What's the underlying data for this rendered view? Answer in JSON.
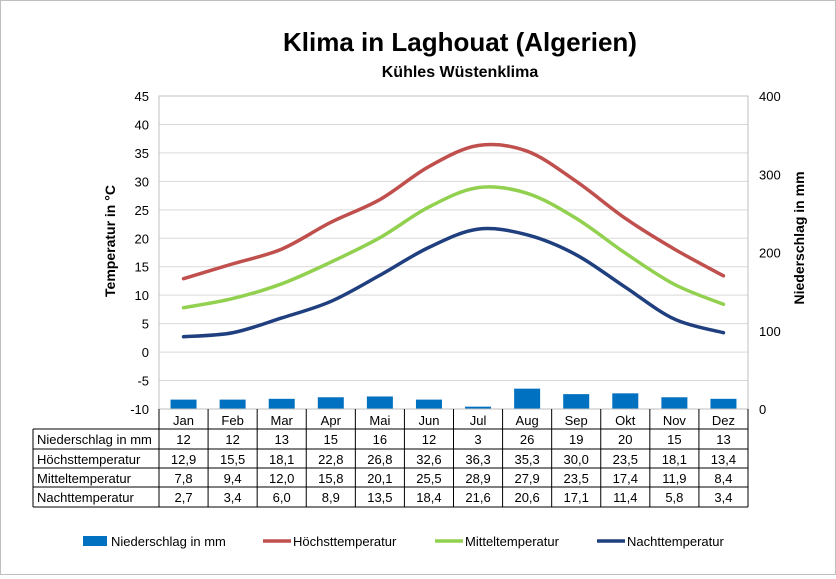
{
  "chart_data": {
    "type": "bar+line",
    "title": "Klima in Laghouat (Algerien)",
    "subtitle": "Kühles Wüstenklima",
    "categories": [
      "Jan",
      "Feb",
      "Mar",
      "Apr",
      "Mai",
      "Jun",
      "Jul",
      "Aug",
      "Sep",
      "Okt",
      "Nov",
      "Dez"
    ],
    "y_left": {
      "label": "Temperatur in °C",
      "min": -10,
      "max": 45,
      "step": 5
    },
    "y_right": {
      "label": "Niederschlag in mm",
      "min": 0,
      "max": 400,
      "step": 100
    },
    "bars": {
      "name": "Niederschlag in mm",
      "color": "#0070c0",
      "values": [
        12,
        12,
        13,
        15,
        16,
        12,
        3,
        26,
        19,
        20,
        15,
        13
      ]
    },
    "lines": [
      {
        "name": "Höchsttemperatur",
        "color": "#c0504d",
        "values": [
          12.9,
          15.5,
          18.1,
          22.8,
          26.8,
          32.6,
          36.3,
          35.3,
          30.0,
          23.5,
          18.1,
          13.4
        ]
      },
      {
        "name": "Mitteltemperatur",
        "color": "#92d050",
        "values": [
          7.8,
          9.4,
          12.0,
          15.8,
          20.1,
          25.5,
          28.9,
          27.9,
          23.5,
          17.4,
          11.9,
          8.4
        ]
      },
      {
        "name": "Nachttemperatur",
        "color": "#1f3f7f",
        "values": [
          2.7,
          3.4,
          6.0,
          8.9,
          13.5,
          18.4,
          21.6,
          20.6,
          17.1,
          11.4,
          5.8,
          3.4
        ]
      }
    ],
    "table_rows": [
      {
        "label": "Niederschlag in mm",
        "cells": [
          "12",
          "12",
          "13",
          "15",
          "16",
          "12",
          "3",
          "26",
          "19",
          "20",
          "15",
          "13"
        ]
      },
      {
        "label": "Höchsttemperatur",
        "cells": [
          "12,9",
          "15,5",
          "18,1",
          "22,8",
          "26,8",
          "32,6",
          "36,3",
          "35,3",
          "30,0",
          "23,5",
          "18,1",
          "13,4"
        ]
      },
      {
        "label": "Mitteltemperatur",
        "cells": [
          "7,8",
          "9,4",
          "12,0",
          "15,8",
          "20,1",
          "25,5",
          "28,9",
          "27,9",
          "23,5",
          "17,4",
          "11,9",
          "8,4"
        ]
      },
      {
        "label": "Nachttemperatur",
        "cells": [
          "2,7",
          "3,4",
          "6,0",
          "8,9",
          "13,5",
          "18,4",
          "21,6",
          "20,6",
          "17,1",
          "11,4",
          "5,8",
          "3,4"
        ]
      }
    ],
    "legend": [
      "Niederschlag in mm",
      "Höchsttemperatur",
      "Mitteltemperatur",
      "Nachttemperatur"
    ],
    "grid": true,
    "legend_position": "bottom"
  }
}
